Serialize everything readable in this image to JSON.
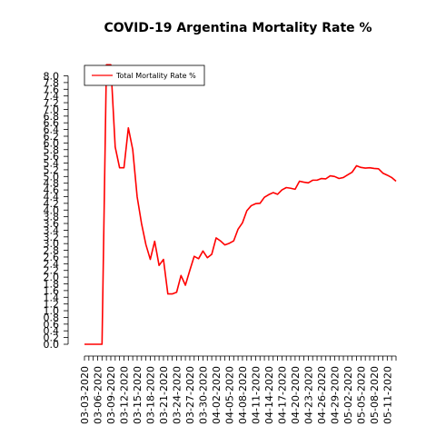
{
  "chart_data": {
    "type": "line",
    "title": "COVID-19 Argentina Mortality Rate %",
    "xlabel": "",
    "ylabel": "",
    "ylim": [
      0,
      8.2
    ],
    "y_ticks": [
      "0.0",
      "0.2",
      "0.4",
      "0.6",
      "0.8",
      "1.0",
      "1.2",
      "1.4",
      "1.6",
      "1.8",
      "2.0",
      "2.2",
      "2.4",
      "2.6",
      "2.8",
      "3.0",
      "3.2",
      "3.4",
      "3.6",
      "3.8",
      "4.0",
      "4.2",
      "4.4",
      "4.6",
      "4.8",
      "5.0",
      "5.2",
      "5.4",
      "5.6",
      "5.8",
      "6.0",
      "6.2",
      "6.4",
      "6.6",
      "6.8",
      "7.0",
      "7.2",
      "7.4",
      "7.6",
      "7.8",
      "8.0"
    ],
    "x_tick_labels": [
      "03-03-2020",
      "03-06-2020",
      "03-09-2020",
      "03-12-2020",
      "03-15-2020",
      "03-18-2020",
      "03-21-2020",
      "03-24-2020",
      "03-27-2020",
      "03-30-2020",
      "04-02-2020",
      "04-05-2020",
      "04-08-2020",
      "04-11-2020",
      "04-14-2020",
      "04-17-2020",
      "04-20-2020",
      "04-23-2020",
      "04-26-2020",
      "04-29-2020",
      "05-02-2020",
      "05-05-2020",
      "05-08-2020",
      "05-11-2020"
    ],
    "grid": false,
    "legend": {
      "position": "top-left",
      "entries": [
        "Total Mortality Rate %"
      ]
    },
    "series": [
      {
        "name": "Total Mortality Rate %",
        "color": "#ff0000",
        "x": [
          "03-03-2020",
          "03-04-2020",
          "03-05-2020",
          "03-06-2020",
          "03-07-2020",
          "03-08-2020",
          "03-09-2020",
          "03-10-2020",
          "03-11-2020",
          "03-12-2020",
          "03-13-2020",
          "03-14-2020",
          "03-15-2020",
          "03-16-2020",
          "03-17-2020",
          "03-18-2020",
          "03-19-2020",
          "03-20-2020",
          "03-21-2020",
          "03-22-2020",
          "03-23-2020",
          "03-24-2020",
          "03-25-2020",
          "03-26-2020",
          "03-27-2020",
          "03-28-2020",
          "03-29-2020",
          "03-30-2020",
          "03-31-2020",
          "04-01-2020",
          "04-02-2020",
          "04-03-2020",
          "04-04-2020",
          "04-05-2020",
          "04-06-2020",
          "04-07-2020",
          "04-08-2020",
          "04-09-2020",
          "04-10-2020",
          "04-11-2020",
          "04-12-2020",
          "04-13-2020",
          "04-14-2020",
          "04-15-2020",
          "04-16-2020",
          "04-17-2020",
          "04-18-2020",
          "04-19-2020",
          "04-20-2020",
          "04-21-2020",
          "04-22-2020",
          "04-23-2020",
          "04-24-2020",
          "04-25-2020",
          "04-26-2020",
          "04-27-2020",
          "04-28-2020",
          "04-29-2020",
          "04-30-2020",
          "05-01-2020",
          "05-02-2020",
          "05-03-2020",
          "05-04-2020",
          "05-05-2020",
          "05-06-2020",
          "05-07-2020",
          "05-08-2020",
          "05-09-2020",
          "05-10-2020",
          "05-11-2020",
          "05-12-2020",
          "05-13-2020"
        ],
        "values": [
          0.0,
          0.0,
          0.0,
          0.0,
          0.0,
          8.33,
          8.33,
          5.88,
          5.26,
          5.26,
          6.45,
          5.8,
          4.4,
          3.6,
          2.97,
          2.53,
          3.07,
          2.35,
          2.53,
          1.5,
          1.5,
          1.55,
          2.05,
          1.76,
          2.2,
          2.62,
          2.55,
          2.78,
          2.58,
          2.68,
          3.17,
          3.08,
          2.96,
          3.01,
          3.08,
          3.43,
          3.62,
          3.98,
          4.13,
          4.19,
          4.2,
          4.38,
          4.46,
          4.52,
          4.47,
          4.6,
          4.67,
          4.65,
          4.62,
          4.86,
          4.83,
          4.81,
          4.89,
          4.89,
          4.94,
          4.93,
          5.02,
          5.0,
          4.94,
          4.97,
          5.05,
          5.13,
          5.32,
          5.27,
          5.25,
          5.26,
          5.24,
          5.23,
          5.1,
          5.04,
          4.97,
          4.86
        ]
      }
    ]
  }
}
